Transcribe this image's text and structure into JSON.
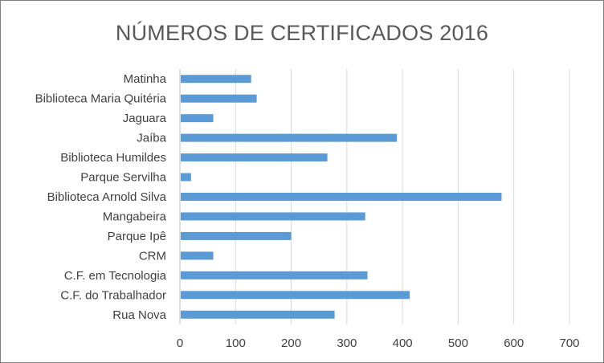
{
  "chart_data": {
    "type": "bar",
    "orientation": "horizontal",
    "title": "NÚMEROS DE CERTIFICADOS 2016",
    "xlabel": "",
    "ylabel": "",
    "categories": [
      "Matinha",
      "Biblioteca Maria Quitéria",
      "Jaguara",
      "Jaíba",
      "Biblioteca Humildes",
      "Parque Servilha",
      "Biblioteca Arnold Silva",
      "Mangabeira",
      "Parque Ipê",
      "CRM",
      "C.F. em Tecnologia",
      "C.F. do Trabalhador",
      "Rua Nova"
    ],
    "values": [
      128,
      138,
      60,
      390,
      265,
      20,
      578,
      333,
      200,
      60,
      337,
      413,
      278
    ],
    "xlim": [
      0,
      700
    ],
    "xticks": [
      "0",
      "100",
      "200",
      "300",
      "400",
      "500",
      "600",
      "700"
    ],
    "grid": true,
    "legend": "none",
    "colors": {
      "bar": "#5b9bd5",
      "grid": "#d9d9d9",
      "axis": "#bfbfbf",
      "text": "#404040",
      "title": "#595959"
    }
  }
}
